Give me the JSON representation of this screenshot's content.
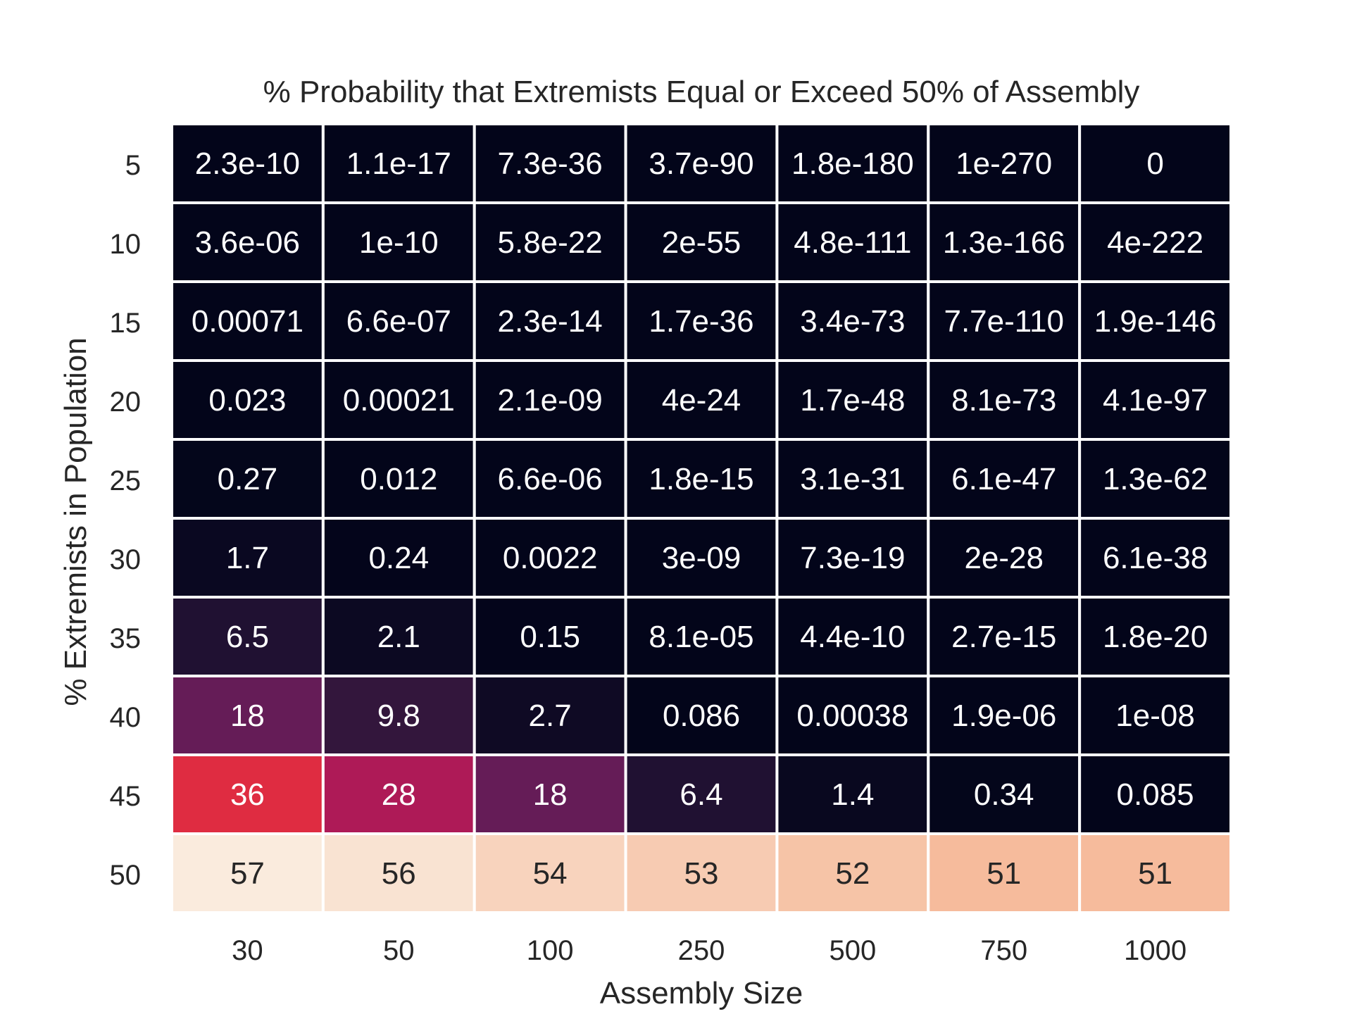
{
  "chart_data": {
    "type": "heatmap",
    "title": "% Probability that Extremists Equal or Exceed 50% of Assembly",
    "xlabel": "Assembly Size",
    "ylabel": "% Extremists in Population",
    "x_categories": [
      "30",
      "50",
      "100",
      "250",
      "500",
      "750",
      "1000"
    ],
    "y_categories": [
      "5",
      "10",
      "15",
      "20",
      "25",
      "30",
      "35",
      "40",
      "45",
      "50"
    ],
    "values": [
      [
        2.3e-10,
        1.1e-17,
        7.3e-36,
        3.7e-90,
        1.8e-180,
        1e-270,
        0
      ],
      [
        3.6e-06,
        1e-10,
        5.8e-22,
        2e-55,
        4.8e-111,
        1.3e-166,
        4e-222
      ],
      [
        0.00071,
        6.6e-07,
        2.3e-14,
        1.7e-36,
        3.4e-73,
        7.7e-110,
        1.9e-146
      ],
      [
        0.023,
        0.00021,
        2.1e-09,
        4e-24,
        1.7e-48,
        8.1e-73,
        4.1e-97
      ],
      [
        0.27,
        0.012,
        6.6e-06,
        1.8e-15,
        3.1e-31,
        6.1e-47,
        1.3e-62
      ],
      [
        1.7,
        0.24,
        0.0022,
        3e-09,
        7.3e-19,
        2e-28,
        6.1e-38
      ],
      [
        6.5,
        2.1,
        0.15,
        8.1e-05,
        4.4e-10,
        2.7e-15,
        1.8e-20
      ],
      [
        18,
        9.8,
        2.7,
        0.086,
        0.00038,
        1.9e-06,
        1e-08
      ],
      [
        36,
        28,
        18,
        6.4,
        1.4,
        0.34,
        0.085
      ],
      [
        57,
        56,
        54,
        53,
        52,
        51,
        51
      ]
    ],
    "labels": [
      [
        "2.3e-10",
        "1.1e-17",
        "7.3e-36",
        "3.7e-90",
        "1.8e-180",
        "1e-270",
        "0"
      ],
      [
        "3.6e-06",
        "1e-10",
        "5.8e-22",
        "2e-55",
        "4.8e-111",
        "1.3e-166",
        "4e-222"
      ],
      [
        "0.00071",
        "6.6e-07",
        "2.3e-14",
        "1.7e-36",
        "3.4e-73",
        "7.7e-110",
        "1.9e-146"
      ],
      [
        "0.023",
        "0.00021",
        "2.1e-09",
        "4e-24",
        "1.7e-48",
        "8.1e-73",
        "4.1e-97"
      ],
      [
        "0.27",
        "0.012",
        "6.6e-06",
        "1.8e-15",
        "3.1e-31",
        "6.1e-47",
        "1.3e-62"
      ],
      [
        "1.7",
        "0.24",
        "0.0022",
        "3e-09",
        "7.3e-19",
        "2e-28",
        "6.1e-38"
      ],
      [
        "6.5",
        "2.1",
        "0.15",
        "8.1e-05",
        "4.4e-10",
        "2.7e-15",
        "1.8e-20"
      ],
      [
        "18",
        "9.8",
        "2.7",
        "0.086",
        "0.00038",
        "1.9e-06",
        "1e-08"
      ],
      [
        "36",
        "28",
        "18",
        "6.4",
        "1.4",
        "0.34",
        "0.085"
      ],
      [
        "57",
        "56",
        "54",
        "53",
        "52",
        "51",
        "51"
      ]
    ],
    "colormap": "rocket",
    "value_range": [
      0,
      57
    ],
    "grid": false,
    "legend": "none"
  }
}
